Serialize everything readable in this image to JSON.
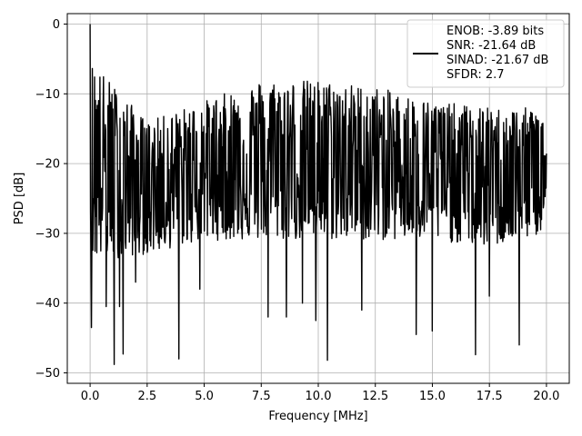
{
  "chart_data": {
    "type": "line",
    "xlabel": "Frequency [MHz]",
    "ylabel": "PSD [dB]",
    "xlim": [
      -1.0,
      21.0
    ],
    "ylim": [
      -51.5,
      1.5
    ],
    "xticks": [
      0.0,
      2.5,
      5.0,
      7.5,
      10.0,
      12.5,
      15.0,
      17.5,
      20.0
    ],
    "xtick_labels": [
      "0.0",
      "2.5",
      "5.0",
      "7.5",
      "10.0",
      "12.5",
      "15.0",
      "17.5",
      "20.0"
    ],
    "yticks": [
      0,
      -10,
      -20,
      -30,
      -40,
      -50
    ],
    "ytick_labels": [
      "0",
      "−10",
      "−20",
      "−30",
      "−40",
      "−50"
    ],
    "grid": true,
    "legend_position": "top-right",
    "series": [
      {
        "color": "#000000",
        "legend_lines": [
          "ENOB: -3.89 bits",
          "SNR: -21.64 dB",
          "SINAD: -21.67 dB",
          "SFDR: 2.7"
        ],
        "peak": {
          "x": 0.0,
          "y": 0.0
        },
        "n_points": 1024,
        "envelope_upper": [
          [
            0.0,
            -5
          ],
          [
            2.5,
            -14
          ],
          [
            5.0,
            -11
          ],
          [
            7.5,
            -8
          ],
          [
            10.0,
            -8
          ],
          [
            12.5,
            -9
          ],
          [
            15.0,
            -11
          ],
          [
            17.5,
            -12
          ],
          [
            20.0,
            -12
          ]
        ],
        "envelope_lower": [
          [
            0.0,
            -34
          ],
          [
            2.5,
            -33
          ],
          [
            5.0,
            -31
          ],
          [
            7.5,
            -31
          ],
          [
            10.0,
            -31
          ],
          [
            12.5,
            -31
          ],
          [
            15.0,
            -31
          ],
          [
            17.5,
            -32
          ],
          [
            20.0,
            -30
          ]
        ],
        "deep_dips": [
          {
            "x": 0.05,
            "y": -43.5
          },
          {
            "x": 0.7,
            "y": -40.5
          },
          {
            "x": 1.05,
            "y": -48.8
          },
          {
            "x": 1.3,
            "y": -40.5
          },
          {
            "x": 1.45,
            "y": -47.3
          },
          {
            "x": 2.0,
            "y": -37.0
          },
          {
            "x": 3.9,
            "y": -48.0
          },
          {
            "x": 4.8,
            "y": -38.0
          },
          {
            "x": 7.8,
            "y": -42.0
          },
          {
            "x": 8.6,
            "y": -42.0
          },
          {
            "x": 9.3,
            "y": -40.0
          },
          {
            "x": 9.9,
            "y": -42.5
          },
          {
            "x": 10.4,
            "y": -48.2
          },
          {
            "x": 11.9,
            "y": -41.0
          },
          {
            "x": 14.3,
            "y": -44.5
          },
          {
            "x": 15.0,
            "y": -44.0
          },
          {
            "x": 16.9,
            "y": -47.4
          },
          {
            "x": 17.5,
            "y": -39.0
          },
          {
            "x": 18.8,
            "y": -46.0
          }
        ]
      }
    ]
  }
}
